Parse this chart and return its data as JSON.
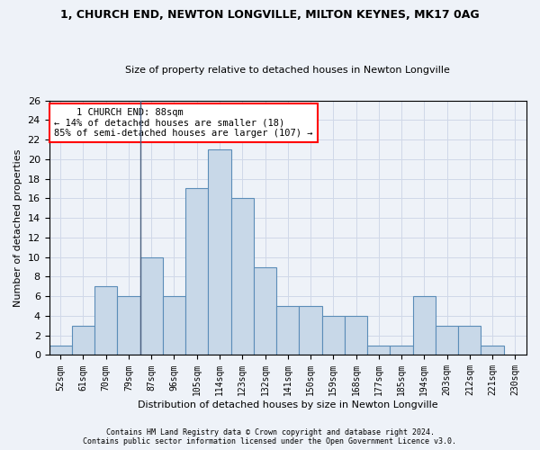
{
  "title1": "1, CHURCH END, NEWTON LONGVILLE, MILTON KEYNES, MK17 0AG",
  "title2": "Size of property relative to detached houses in Newton Longville",
  "xlabel": "Distribution of detached houses by size in Newton Longville",
  "ylabel": "Number of detached properties",
  "footnote": "Contains HM Land Registry data © Crown copyright and database right 2024.\nContains public sector information licensed under the Open Government Licence v3.0.",
  "bin_labels": [
    "52sqm",
    "61sqm",
    "70sqm",
    "79sqm",
    "87sqm",
    "96sqm",
    "105sqm",
    "114sqm",
    "123sqm",
    "132sqm",
    "141sqm",
    "150sqm",
    "159sqm",
    "168sqm",
    "177sqm",
    "185sqm",
    "194sqm",
    "203sqm",
    "212sqm",
    "221sqm",
    "230sqm"
  ],
  "bar_heights": [
    1,
    3,
    7,
    6,
    10,
    6,
    17,
    21,
    16,
    9,
    5,
    5,
    4,
    4,
    1,
    1,
    6,
    3,
    3,
    1,
    0
  ],
  "bar_color": "#c8d8e8",
  "bar_edge_color": "#5b8db8",
  "annotation_text": "    1 CHURCH END: 88sqm\n← 14% of detached houses are smaller (18)\n85% of semi-detached houses are larger (107) →",
  "annotation_box_color": "white",
  "annotation_box_edge_color": "red",
  "ylim": [
    0,
    26
  ],
  "yticks": [
    0,
    2,
    4,
    6,
    8,
    10,
    12,
    14,
    16,
    18,
    20,
    22,
    24,
    26
  ],
  "grid_color": "#d0d8e8",
  "bg_color": "#eef2f8",
  "vline_x_index": 4,
  "title1_fontsize": 9,
  "title2_fontsize": 8,
  "ylabel_fontsize": 8,
  "xlabel_fontsize": 8,
  "footnote_fontsize": 6
}
